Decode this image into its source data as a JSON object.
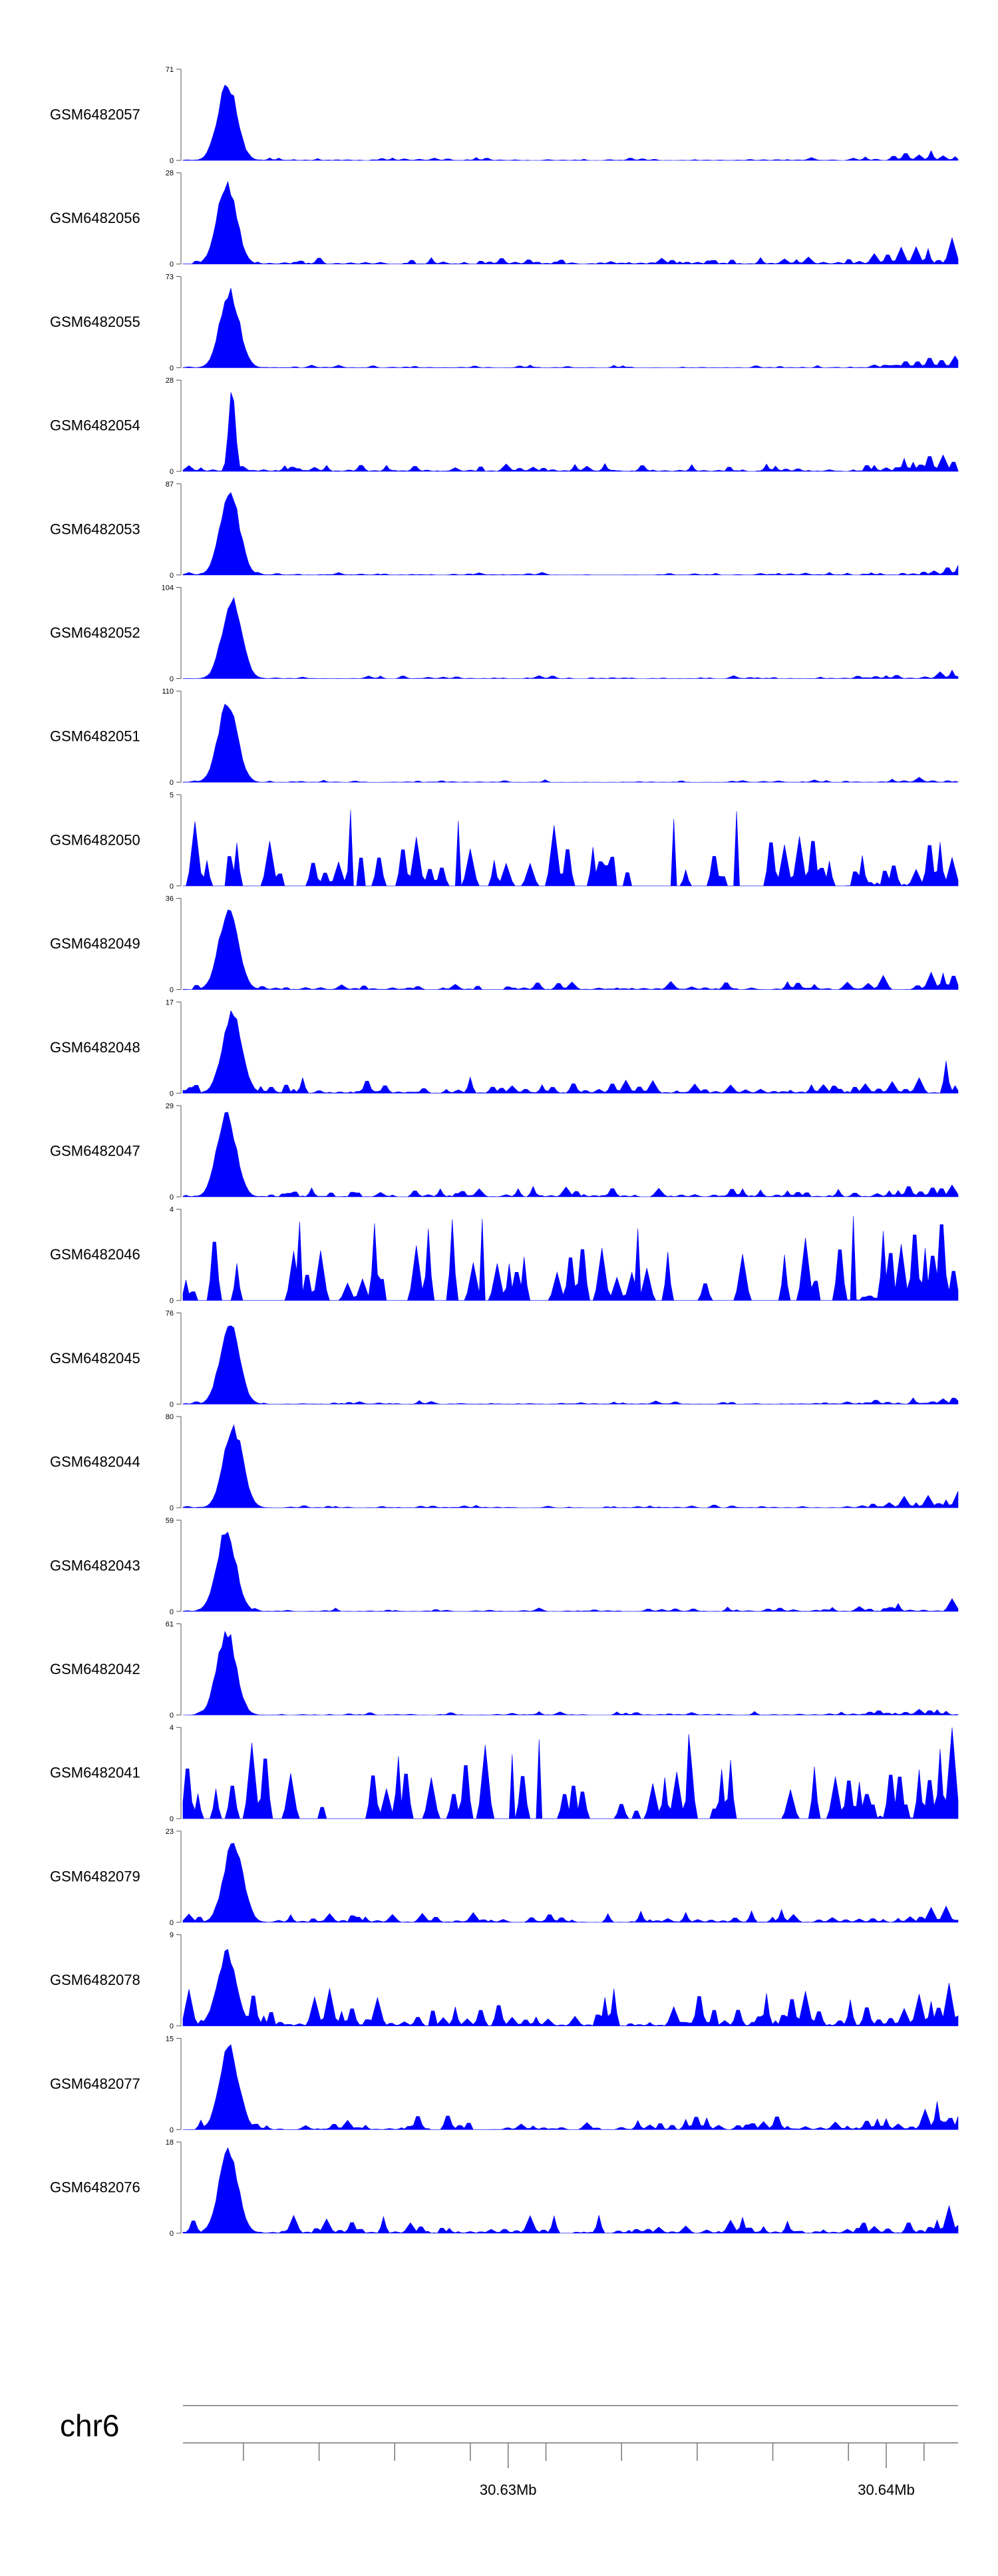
{
  "chart_data": {
    "type": "area",
    "color": "#0000ff",
    "x_range_mb": [
      30.6214,
      30.6419
    ],
    "tracks": [
      {
        "name": "GSM6482057",
        "ymax": "71",
        "ymin": "0",
        "profile": "peak",
        "peak": 0.9,
        "base": 0.04,
        "tail": 0.15
      },
      {
        "name": "GSM6482056",
        "ymax": "28",
        "ymin": "0",
        "profile": "peak",
        "peak": 0.95,
        "base": 0.1,
        "tail": 0.7
      },
      {
        "name": "GSM6482055",
        "ymax": "73",
        "ymin": "0",
        "profile": "peak",
        "peak": 0.9,
        "base": 0.03,
        "tail": 0.2
      },
      {
        "name": "GSM6482054",
        "ymax": "28",
        "ymin": "0",
        "profile": "spike",
        "peak": 0.95,
        "base": 0.1,
        "tail": 0.25
      },
      {
        "name": "GSM6482053",
        "ymax": "87",
        "ymin": "0",
        "profile": "peak",
        "peak": 0.98,
        "base": 0.03,
        "tail": 0.15
      },
      {
        "name": "GSM6482052",
        "ymax": "104",
        "ymin": "0",
        "profile": "peak",
        "peak": 0.95,
        "base": 0.04,
        "tail": 0.12
      },
      {
        "name": "GSM6482051",
        "ymax": "110",
        "ymin": "0",
        "profile": "peak",
        "peak": 0.95,
        "base": 0.03,
        "tail": 0.1
      },
      {
        "name": "GSM6482050",
        "ymax": "5",
        "ymin": "0",
        "profile": "noise",
        "peak": 0.9,
        "base": 0.45,
        "tail": 0.4
      },
      {
        "name": "GSM6482049",
        "ymax": "36",
        "ymin": "0",
        "profile": "peak",
        "peak": 0.95,
        "base": 0.1,
        "tail": 0.25
      },
      {
        "name": "GSM6482048",
        "ymax": "17",
        "ymin": "0",
        "profile": "peak",
        "peak": 0.95,
        "base": 0.18,
        "tail": 0.35
      },
      {
        "name": "GSM6482047",
        "ymax": "29",
        "ymin": "0",
        "profile": "peak",
        "peak": 0.95,
        "base": 0.12,
        "tail": 0.25
      },
      {
        "name": "GSM6482046",
        "ymax": "4",
        "ymin": "0",
        "profile": "noise",
        "peak": 0.95,
        "base": 0.6,
        "tail": 0.6
      },
      {
        "name": "GSM6482045",
        "ymax": "76",
        "ymin": "0",
        "profile": "peak",
        "peak": 0.95,
        "base": 0.04,
        "tail": 0.15
      },
      {
        "name": "GSM6482044",
        "ymax": "80",
        "ymin": "0",
        "profile": "peak",
        "peak": 0.95,
        "base": 0.04,
        "tail": 0.22
      },
      {
        "name": "GSM6482043",
        "ymax": "59",
        "ymin": "0",
        "profile": "peak",
        "peak": 0.95,
        "base": 0.05,
        "tail": 0.25
      },
      {
        "name": "GSM6482042",
        "ymax": "61",
        "ymin": "0",
        "profile": "peak",
        "peak": 0.98,
        "base": 0.04,
        "tail": 0.18
      },
      {
        "name": "GSM6482041",
        "ymax": "4",
        "ymin": "0",
        "profile": "noise",
        "peak": 0.95,
        "base": 0.55,
        "tail": 0.6
      },
      {
        "name": "GSM6482079",
        "ymax": "23",
        "ymin": "0",
        "profile": "peak",
        "peak": 0.95,
        "base": 0.15,
        "tail": 0.2
      },
      {
        "name": "GSM6482078",
        "ymax": "9",
        "ymin": "0",
        "profile": "peak",
        "peak": 0.85,
        "base": 0.45,
        "tail": 0.5
      },
      {
        "name": "GSM6482077",
        "ymax": "15",
        "ymin": "0",
        "profile": "peak",
        "peak": 0.95,
        "base": 0.2,
        "tail": 0.35
      },
      {
        "name": "GSM6482076",
        "ymax": "18",
        "ymin": "0",
        "profile": "peak",
        "peak": 0.95,
        "base": 0.2,
        "tail": 0.4
      }
    ],
    "axis": {
      "chromosome": "chr6",
      "ticks": [
        {
          "pos_mb": 30.623,
          "label": ""
        },
        {
          "pos_mb": 30.625,
          "label": ""
        },
        {
          "pos_mb": 30.63,
          "label": "30.63Mb"
        },
        {
          "pos_mb": 30.627,
          "label": ""
        },
        {
          "pos_mb": 30.629,
          "label": ""
        },
        {
          "pos_mb": 30.631,
          "label": ""
        },
        {
          "pos_mb": 30.633,
          "label": ""
        },
        {
          "pos_mb": 30.635,
          "label": ""
        },
        {
          "pos_mb": 30.637,
          "label": ""
        },
        {
          "pos_mb": 30.64,
          "label": "30.64Mb"
        },
        {
          "pos_mb": 30.639,
          "label": ""
        },
        {
          "pos_mb": 30.641,
          "label": ""
        }
      ]
    }
  }
}
